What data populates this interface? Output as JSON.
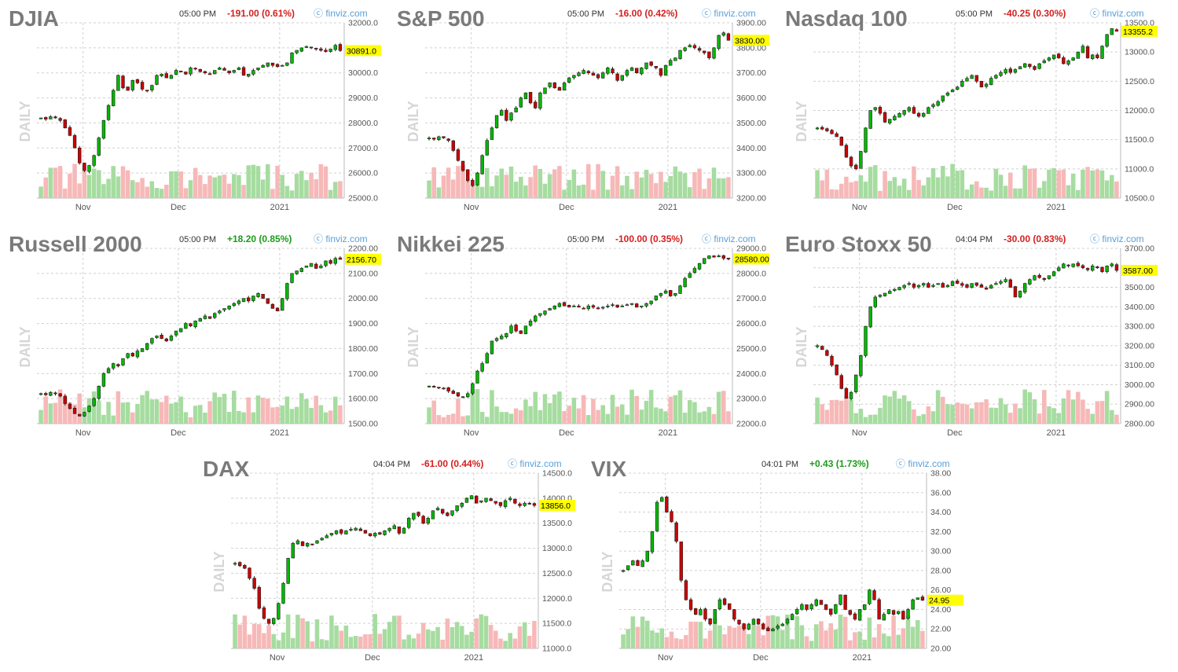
{
  "watermark": "finviz.com",
  "side_label": "DAILY",
  "chart_data": [
    {
      "type": "candlestick",
      "title": "DJIA",
      "time": "05:00 PM",
      "change": "-191.00 (0.61%)",
      "change_dir": "down",
      "last": 30891.0,
      "last_label": "30891.0",
      "ylim": [
        25000,
        32000
      ],
      "yticks": [
        "32000.0",
        "31000.0",
        "30000.0",
        "29000.0",
        "28000.0",
        "27000.0",
        "26000.0",
        "25000.0"
      ],
      "xticks": [
        "Nov",
        "Dec",
        "2021"
      ],
      "close": [
        28200,
        28150,
        28250,
        28200,
        28100,
        27800,
        27500,
        27000,
        26400,
        26100,
        26300,
        26700,
        27400,
        28100,
        28700,
        29300,
        29900,
        29400,
        29300,
        29700,
        29600,
        29350,
        29300,
        29500,
        29900,
        29950,
        29800,
        29900,
        30100,
        30050,
        29950,
        30200,
        30150,
        30050,
        30000,
        29950,
        30100,
        30200,
        30100,
        30000,
        30100,
        30200,
        29900,
        29950,
        30100,
        30200,
        30300,
        30400,
        30300,
        30250,
        30300,
        30400,
        30800,
        30900,
        31000,
        31050,
        31000,
        30950,
        30900,
        30850,
        30950,
        31100,
        30891
      ]
    },
    {
      "type": "candlestick",
      "title": "S&P 500",
      "time": "05:00 PM",
      "change": "-16.00 (0.42%)",
      "change_dir": "down",
      "last": 3830.0,
      "last_label": "3830.00",
      "ylim": [
        3200,
        3900
      ],
      "yticks": [
        "3900.00",
        "3800.00",
        "3700.00",
        "3600.00",
        "3500.00",
        "3400.00",
        "3300.00",
        "3200.00"
      ],
      "xticks": [
        "Nov",
        "Dec",
        "2021"
      ],
      "close": [
        3440,
        3435,
        3445,
        3440,
        3430,
        3390,
        3350,
        3310,
        3270,
        3250,
        3300,
        3370,
        3430,
        3480,
        3530,
        3550,
        3510,
        3540,
        3560,
        3600,
        3620,
        3580,
        3560,
        3620,
        3640,
        3660,
        3640,
        3630,
        3660,
        3680,
        3690,
        3700,
        3710,
        3700,
        3690,
        3680,
        3700,
        3720,
        3700,
        3670,
        3690,
        3710,
        3720,
        3700,
        3720,
        3740,
        3730,
        3720,
        3690,
        3730,
        3750,
        3760,
        3790,
        3800,
        3810,
        3800,
        3790,
        3780,
        3760,
        3800,
        3850,
        3860,
        3830
      ]
    },
    {
      "type": "candlestick",
      "title": "Nasdaq 100",
      "time": "05:00 PM",
      "change": "-40.25 (0.30%)",
      "change_dir": "down",
      "last": 13355.2,
      "last_label": "13355.2",
      "ylim": [
        10500,
        13500
      ],
      "yticks": [
        "13500.0",
        "13000.0",
        "12500.0",
        "12000.0",
        "11500.0",
        "11000.0",
        "10500.0"
      ],
      "xticks": [
        "Nov",
        "Dec",
        "2021"
      ],
      "close": [
        11700,
        11680,
        11650,
        11600,
        11550,
        11400,
        11200,
        11050,
        11000,
        11300,
        11700,
        12000,
        12050,
        11950,
        11800,
        11850,
        11900,
        11950,
        12000,
        12050,
        11950,
        11900,
        11950,
        12050,
        12100,
        12150,
        12250,
        12300,
        12350,
        12400,
        12500,
        12550,
        12600,
        12500,
        12400,
        12450,
        12550,
        12600,
        12650,
        12700,
        12650,
        12700,
        12750,
        12800,
        12750,
        12700,
        12800,
        12850,
        12900,
        12950,
        12900,
        12800,
        12850,
        12900,
        13000,
        13100,
        12900,
        12950,
        12900,
        13100,
        13300,
        13400,
        13355
      ]
    },
    {
      "type": "candlestick",
      "title": "Russell 2000",
      "time": "05:00 PM",
      "change": "+18.20 (0.85%)",
      "change_dir": "up",
      "last": 2156.7,
      "last_label": "2156.70",
      "ylim": [
        1500,
        2200
      ],
      "yticks": [
        "2200.00",
        "2100.00",
        "2000.00",
        "1900.00",
        "1800.00",
        "1700.00",
        "1600.00",
        "1500.00"
      ],
      "xticks": [
        "Nov",
        "Dec",
        "2021"
      ],
      "close": [
        1620,
        1615,
        1625,
        1620,
        1610,
        1580,
        1560,
        1540,
        1530,
        1545,
        1570,
        1600,
        1650,
        1700,
        1720,
        1740,
        1730,
        1760,
        1780,
        1770,
        1790,
        1800,
        1820,
        1840,
        1850,
        1840,
        1830,
        1850,
        1870,
        1880,
        1900,
        1890,
        1910,
        1920,
        1930,
        1920,
        1940,
        1950,
        1960,
        1970,
        1980,
        1990,
        2000,
        1990,
        2010,
        2020,
        2000,
        1980,
        1960,
        1950,
        2000,
        2060,
        2100,
        2110,
        2120,
        2130,
        2140,
        2120,
        2130,
        2150,
        2140,
        2160,
        2156
      ]
    },
    {
      "type": "candlestick",
      "title": "Nikkei 225",
      "time": "05:00 PM",
      "change": "-100.00 (0.35%)",
      "change_dir": "down",
      "last": 28580.0,
      "last_label": "28580.00",
      "ylim": [
        22000,
        29000
      ],
      "yticks": [
        "29000.0",
        "28000.0",
        "27000.0",
        "26000.0",
        "25000.0",
        "24000.0",
        "23000.0",
        "22000.0"
      ],
      "xticks": [
        "Nov",
        "Dec",
        "2021"
      ],
      "close": [
        23500,
        23480,
        23450,
        23420,
        23300,
        23200,
        23100,
        23050,
        23200,
        23600,
        24100,
        24400,
        24800,
        25300,
        25400,
        25500,
        25600,
        25900,
        25700,
        25600,
        25900,
        26100,
        26300,
        26400,
        26500,
        26600,
        26700,
        26800,
        26700,
        26650,
        26700,
        26650,
        26600,
        26700,
        26650,
        26600,
        26650,
        26700,
        26750,
        26650,
        26700,
        26750,
        26800,
        26650,
        26700,
        26800,
        26900,
        27100,
        27200,
        27300,
        27100,
        27200,
        27500,
        27800,
        28000,
        28200,
        28400,
        28600,
        28700,
        28650,
        28700,
        28600,
        28580
      ]
    },
    {
      "type": "candlestick",
      "title": "Euro Stoxx 50",
      "time": "04:04 PM",
      "change": "-30.00 (0.83%)",
      "change_dir": "down",
      "last": 3587.0,
      "last_label": "3587.00",
      "ylim": [
        2800,
        3700
      ],
      "yticks": [
        "3700.00",
        "3600.00",
        "3500.00",
        "3400.00",
        "3300.00",
        "3200.00",
        "3100.00",
        "3000.00",
        "2900.00",
        "2800.00"
      ],
      "xticks": [
        "Nov",
        "Dec",
        "2021"
      ],
      "close": [
        3200,
        3180,
        3150,
        3100,
        3050,
        2980,
        2930,
        2960,
        3050,
        3150,
        3300,
        3400,
        3450,
        3460,
        3470,
        3480,
        3490,
        3500,
        3510,
        3520,
        3500,
        3510,
        3520,
        3500,
        3510,
        3520,
        3500,
        3510,
        3530,
        3520,
        3510,
        3500,
        3520,
        3510,
        3500,
        3490,
        3510,
        3520,
        3530,
        3540,
        3500,
        3450,
        3480,
        3520,
        3540,
        3560,
        3550,
        3540,
        3560,
        3580,
        3600,
        3620,
        3610,
        3620,
        3610,
        3600,
        3590,
        3610,
        3600,
        3580,
        3610,
        3620,
        3587
      ]
    },
    {
      "type": "candlestick",
      "title": "DAX",
      "time": "04:04 PM",
      "change": "-61.00 (0.44%)",
      "change_dir": "down",
      "last": 13856.0,
      "last_label": "13856.0",
      "ylim": [
        11000,
        14500
      ],
      "yticks": [
        "14500.0",
        "14000.0",
        "13500.0",
        "13000.0",
        "12500.0",
        "12000.0",
        "11500.0",
        "11000.0"
      ],
      "xticks": [
        "Nov",
        "Dec",
        "2021"
      ],
      "close": [
        12700,
        12650,
        12600,
        12400,
        12200,
        11800,
        11600,
        11500,
        11600,
        11900,
        12300,
        12800,
        13100,
        13150,
        13050,
        13100,
        13080,
        13150,
        13200,
        13250,
        13300,
        13350,
        13300,
        13350,
        13380,
        13400,
        13350,
        13300,
        13250,
        13300,
        13280,
        13350,
        13400,
        13450,
        13300,
        13400,
        13600,
        13700,
        13650,
        13500,
        13600,
        13750,
        13800,
        13700,
        13650,
        13750,
        13850,
        13900,
        14000,
        14050,
        13900,
        13950,
        14000,
        13950,
        13900,
        13850,
        13950,
        14000,
        13900,
        13850,
        13900,
        13880,
        13856
      ]
    },
    {
      "type": "candlestick",
      "title": "VIX",
      "time": "04:01 PM",
      "change": "+0.43 (1.73%)",
      "change_dir": "up",
      "last": 24.95,
      "last_label": "24.95",
      "ylim": [
        20,
        38
      ],
      "yticks": [
        "38.00",
        "36.00",
        "34.00",
        "32.00",
        "30.00",
        "28.00",
        "26.00",
        "24.00",
        "22.00",
        "20.00"
      ],
      "xticks": [
        "Nov",
        "Dec",
        "2021"
      ],
      "close": [
        28,
        28.5,
        29,
        28.5,
        29,
        30,
        32,
        35,
        35.5,
        34,
        33,
        31,
        27,
        25,
        24,
        23.5,
        24,
        23,
        22.5,
        24,
        25,
        24.5,
        24,
        23,
        22.5,
        22,
        22.5,
        23,
        22.5,
        22,
        21.8,
        22,
        22.3,
        22.5,
        23,
        23.5,
        24,
        24.5,
        24,
        24.5,
        25,
        24.5,
        24,
        23.5,
        24.5,
        25.5,
        24,
        23.5,
        23,
        24,
        24.5,
        26,
        25,
        23,
        23.5,
        24,
        23.5,
        23.8,
        23,
        24,
        25,
        25.2,
        24.95
      ]
    }
  ]
}
